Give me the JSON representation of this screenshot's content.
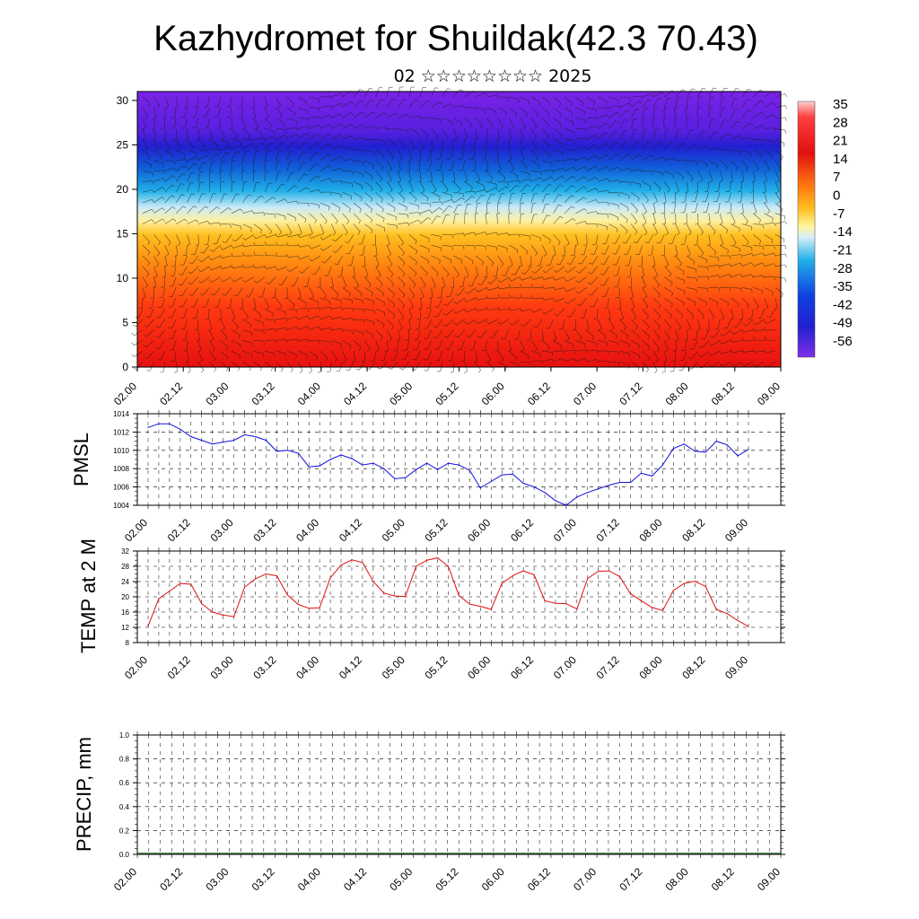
{
  "title": "Kazhydromet for Shuildak(42.3 70.43)",
  "subtitle": "02 ☆☆☆☆☆☆☆☆ 2025",
  "chart_data": [
    {
      "type": "heatmap",
      "name": "cross-section",
      "y_ticks": [
        "0",
        "5",
        "10",
        "15",
        "20",
        "25",
        "30"
      ],
      "ylim": [
        0,
        31
      ],
      "x_ticks": [
        "02.00",
        "02.12",
        "03.00",
        "03.12",
        "04.00",
        "04.12",
        "05.00",
        "05.12",
        "06.00",
        "06.12",
        "07.00",
        "07.12",
        "08.00",
        "08.12",
        "09.00"
      ],
      "colorbar_labels": [
        "35",
        "28",
        "21",
        "14",
        "7",
        "0",
        "-7",
        "-14",
        "-21",
        "-28",
        "-35",
        "-42",
        "-49",
        "-56"
      ],
      "colors": {
        "cold": "#7a22e6",
        "blue": "#2020d0",
        "cyan": "#20b0e8",
        "pale": "#fff0a0",
        "orange": "#ff9a10",
        "red": "#e81010"
      }
    },
    {
      "type": "line",
      "ylabel": "PMSL",
      "ylim": [
        1004,
        1014
      ],
      "y_ticks": [
        "1004",
        "1006",
        "1008",
        "1010",
        "1012",
        "1014"
      ],
      "x_ticks": [
        "02.00",
        "02.12",
        "03.00",
        "03.12",
        "04.00",
        "04.12",
        "05.00",
        "05.12",
        "06.00",
        "06.12",
        "07.00",
        "07.12",
        "08.00",
        "08.12",
        "09.00"
      ],
      "color": "#1010e0",
      "values": [
        1012.5,
        1012.9,
        1012.9,
        1012.3,
        1011.5,
        1011.1,
        1010.7,
        1010.9,
        1011.1,
        1011.7,
        1011.5,
        1011.1,
        1009.9,
        1010.0,
        1009.7,
        1008.2,
        1008.3,
        1009.0,
        1009.5,
        1009.1,
        1008.4,
        1008.6,
        1008.0,
        1006.9,
        1007.0,
        1007.9,
        1008.6,
        1007.9,
        1008.6,
        1008.4,
        1007.8,
        1005.9,
        1006.6,
        1007.3,
        1007.4,
        1006.4,
        1006.0,
        1005.4,
        1004.5,
        1004.0,
        1004.9,
        1005.4,
        1005.8,
        1006.2,
        1006.5,
        1006.5,
        1007.5,
        1007.2,
        1008.4,
        1010.2,
        1010.7,
        1009.9,
        1009.8,
        1011.0,
        1010.6,
        1009.4,
        1010.1
      ]
    },
    {
      "type": "line",
      "ylabel": "TEMP at 2 M",
      "ylim": [
        8,
        32
      ],
      "y_ticks": [
        "8",
        "12",
        "16",
        "20",
        "24",
        "28",
        "32"
      ],
      "x_ticks": [
        "02.00",
        "02.12",
        "03.00",
        "03.12",
        "04.00",
        "04.12",
        "05.00",
        "05.12",
        "06.00",
        "06.12",
        "07.00",
        "07.12",
        "08.00",
        "08.12",
        "09.00"
      ],
      "color": "#e01010",
      "values": [
        12.3,
        19.5,
        21.5,
        23.5,
        23.3,
        18.2,
        16.0,
        15.2,
        14.8,
        22.5,
        24.7,
        26.0,
        25.5,
        20.5,
        18.0,
        17.0,
        17.1,
        25.0,
        28.3,
        29.7,
        29.0,
        24.0,
        21.0,
        20.2,
        20.1,
        28.0,
        29.6,
        30.2,
        28.0,
        20.3,
        18.1,
        17.5,
        16.7,
        23.5,
        25.5,
        26.8,
        25.8,
        19.0,
        18.3,
        18.2,
        16.8,
        24.8,
        26.7,
        26.8,
        25.3,
        20.8,
        19.0,
        17.2,
        16.4,
        21.7,
        23.5,
        24.1,
        22.7,
        16.7,
        15.6,
        13.8,
        12.2
      ]
    },
    {
      "type": "bar",
      "ylabel": "PRECIP, mm",
      "ylim": [
        0,
        1
      ],
      "y_ticks": [
        "0.0",
        "0.2",
        "0.4",
        "0.6",
        "0.8",
        "1.0"
      ],
      "x_ticks": [
        "02.00",
        "02.12",
        "03.00",
        "03.12",
        "04.00",
        "04.12",
        "05.00",
        "05.12",
        "06.00",
        "06.12",
        "07.00",
        "07.12",
        "08.00",
        "08.12",
        "09.00"
      ],
      "values": [
        0,
        0,
        0,
        0,
        0,
        0,
        0,
        0,
        0,
        0,
        0,
        0,
        0,
        0,
        0,
        0,
        0,
        0,
        0,
        0,
        0,
        0,
        0,
        0,
        0,
        0,
        0,
        0,
        0,
        0,
        0,
        0,
        0,
        0,
        0,
        0,
        0,
        0,
        0,
        0,
        0,
        0,
        0,
        0,
        0,
        0,
        0,
        0,
        0,
        0,
        0,
        0,
        0,
        0,
        0,
        0,
        0
      ]
    }
  ]
}
